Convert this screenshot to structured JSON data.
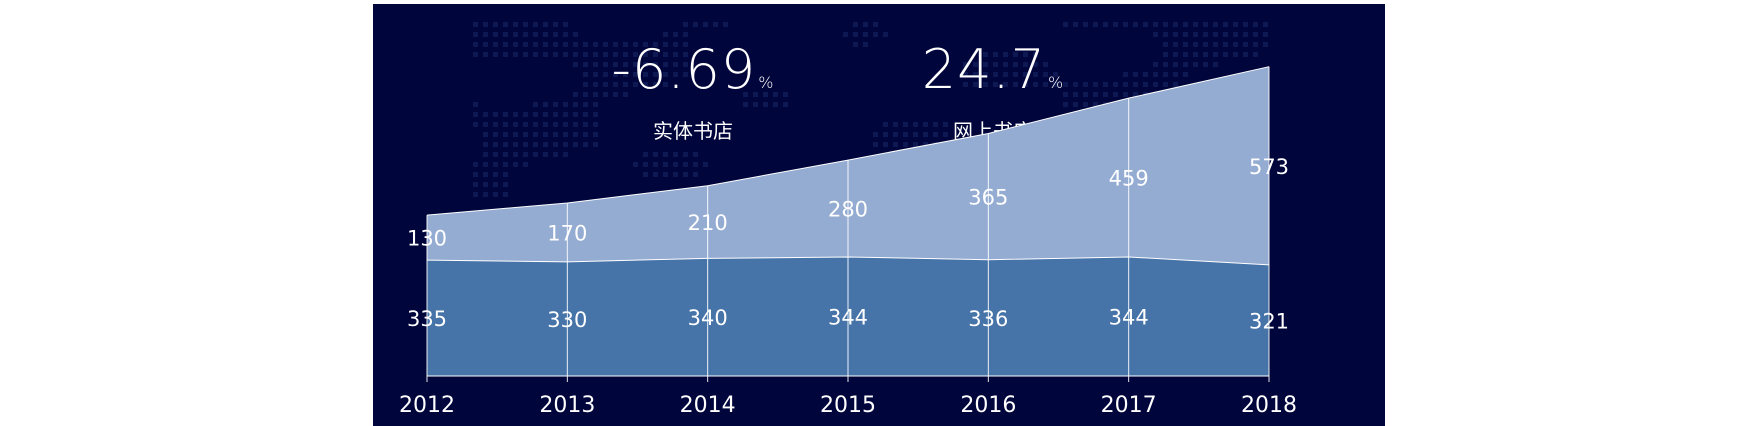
{
  "stats": [
    {
      "value": "-6.69",
      "unit": "%",
      "label": "实体书店"
    },
    {
      "value": "24.7",
      "unit": "%",
      "label": "网上书店"
    }
  ],
  "colors": {
    "background": "#00053b",
    "lower_area": "#4673a8",
    "upper_area": "#94abd2",
    "text": "#ffffff"
  },
  "chart_data": {
    "type": "area",
    "stacked": true,
    "categories": [
      "2012",
      "2013",
      "2014",
      "2015",
      "2016",
      "2017",
      "2018"
    ],
    "series": [
      {
        "values": [
          335,
          330,
          340,
          344,
          336,
          344,
          321
        ]
      },
      {
        "values": [
          130,
          170,
          210,
          280,
          365,
          459,
          573
        ]
      }
    ],
    "title": "",
    "xlabel": "",
    "ylabel": "",
    "ylim": [
      0,
      1000
    ],
    "grid": false,
    "legend": "none"
  }
}
